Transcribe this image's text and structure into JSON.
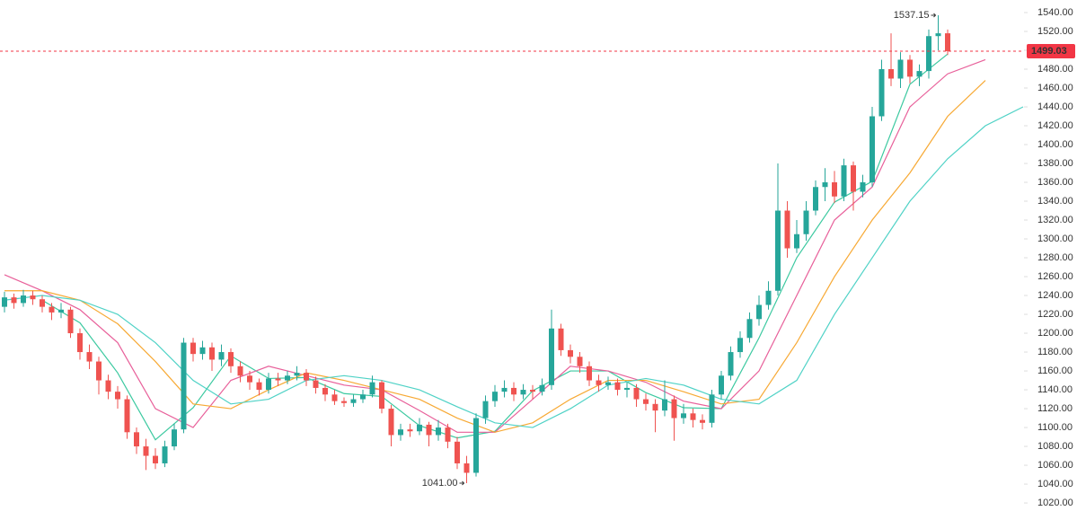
{
  "chart_data": {
    "type": "candlestick",
    "up_color": "#26a69a",
    "down_color": "#ef5350",
    "ylim": [
      1011.5,
      1553.3
    ],
    "yticks": [
      {
        "value": 1540,
        "label": "1540.00"
      },
      {
        "value": 1520,
        "label": "1520.00"
      },
      {
        "value": 1500,
        "label": "1500.00"
      },
      {
        "value": 1480,
        "label": "1480.00"
      },
      {
        "value": 1460,
        "label": "1460.00"
      },
      {
        "value": 1440,
        "label": "1440.00"
      },
      {
        "value": 1420,
        "label": "1420.00"
      },
      {
        "value": 1400,
        "label": "1400.00"
      },
      {
        "value": 1380,
        "label": "1380.00"
      },
      {
        "value": 1360,
        "label": "1360.00"
      },
      {
        "value": 1340,
        "label": "1340.00"
      },
      {
        "value": 1320,
        "label": "1320.00"
      },
      {
        "value": 1300,
        "label": "1300.00"
      },
      {
        "value": 1280,
        "label": "1280.00"
      },
      {
        "value": 1260,
        "label": "1260.00"
      },
      {
        "value": 1240,
        "label": "1240.00"
      },
      {
        "value": 1220,
        "label": "1220.00"
      },
      {
        "value": 1200,
        "label": "1200.00"
      },
      {
        "value": 1180,
        "label": "1180.00"
      },
      {
        "value": 1160,
        "label": "1160.00"
      },
      {
        "value": 1140,
        "label": "1140.00"
      },
      {
        "value": 1120,
        "label": "1120.00"
      },
      {
        "value": 1100,
        "label": "1100.00"
      },
      {
        "value": 1080,
        "label": "1080.00"
      },
      {
        "value": 1060,
        "label": "1060.00"
      },
      {
        "value": 1040,
        "label": "1040.00"
      },
      {
        "value": 1020,
        "label": "1020.00"
      }
    ],
    "open": [
      1228,
      1238,
      1232,
      1240,
      1236,
      1228,
      1222,
      1225,
      1200,
      1180,
      1170,
      1150,
      1138,
      1130,
      1095,
      1080,
      1070,
      1062,
      1080,
      1098,
      1190,
      1178,
      1185,
      1172,
      1180,
      1165,
      1155,
      1148,
      1140,
      1152,
      1150,
      1155,
      1158,
      1150,
      1142,
      1135,
      1128,
      1126,
      1130,
      1135,
      1148,
      1120,
      1092,
      1098,
      1096,
      1103,
      1092,
      1100,
      1085,
      1062,
      1052,
      1110,
      1128,
      1138,
      1142,
      1135,
      1140,
      1138,
      1145,
      1205,
      1182,
      1175,
      1165,
      1150,
      1145,
      1148,
      1140,
      1142,
      1130,
      1125,
      1118,
      1130,
      1110,
      1115,
      1108,
      1105,
      1135,
      1155,
      1180,
      1195,
      1215,
      1230,
      1245,
      1330,
      1290,
      1305,
      1330,
      1355,
      1360,
      1345,
      1378,
      1350,
      1360,
      1430,
      1480,
      1470,
      1490,
      1472,
      1478,
      1515,
      1518
    ],
    "high": [
      1244,
      1242,
      1246,
      1245,
      1240,
      1232,
      1232,
      1228,
      1205,
      1188,
      1175,
      1156,
      1144,
      1134,
      1100,
      1088,
      1078,
      1086,
      1104,
      1195,
      1195,
      1192,
      1190,
      1188,
      1184,
      1170,
      1160,
      1152,
      1158,
      1158,
      1160,
      1165,
      1162,
      1154,
      1146,
      1140,
      1132,
      1135,
      1140,
      1155,
      1150,
      1124,
      1104,
      1104,
      1110,
      1106,
      1108,
      1104,
      1090,
      1070,
      1115,
      1134,
      1145,
      1150,
      1148,
      1146,
      1145,
      1152,
      1225,
      1210,
      1188,
      1180,
      1170,
      1156,
      1154,
      1152,
      1148,
      1146,
      1136,
      1130,
      1150,
      1134,
      1125,
      1120,
      1114,
      1140,
      1160,
      1186,
      1202,
      1222,
      1240,
      1255,
      1380,
      1340,
      1320,
      1340,
      1362,
      1375,
      1372,
      1385,
      1382,
      1368,
      1440,
      1490,
      1518,
      1498,
      1495,
      1485,
      1522,
      1537.15,
      1522
    ],
    "low": [
      1222,
      1226,
      1228,
      1230,
      1222,
      1214,
      1216,
      1195,
      1172,
      1162,
      1135,
      1130,
      1120,
      1088,
      1072,
      1055,
      1056,
      1058,
      1076,
      1094,
      1170,
      1172,
      1160,
      1165,
      1158,
      1148,
      1140,
      1134,
      1136,
      1144,
      1146,
      1150,
      1144,
      1136,
      1128,
      1124,
      1122,
      1122,
      1126,
      1132,
      1115,
      1080,
      1086,
      1090,
      1092,
      1080,
      1086,
      1078,
      1056,
      1041,
      1048,
      1104,
      1122,
      1132,
      1128,
      1130,
      1130,
      1134,
      1140,
      1176,
      1168,
      1158,
      1144,
      1138,
      1140,
      1134,
      1132,
      1122,
      1118,
      1095,
      1112,
      1086,
      1104,
      1100,
      1098,
      1100,
      1130,
      1150,
      1174,
      1190,
      1208,
      1225,
      1240,
      1280,
      1285,
      1298,
      1325,
      1340,
      1338,
      1340,
      1330,
      1344,
      1355,
      1425,
      1462,
      1460,
      1465,
      1462,
      1470,
      1500,
      1495
    ],
    "close": [
      1238,
      1232,
      1240,
      1236,
      1228,
      1222,
      1225,
      1200,
      1180,
      1170,
      1150,
      1138,
      1130,
      1095,
      1080,
      1070,
      1062,
      1080,
      1098,
      1190,
      1178,
      1185,
      1172,
      1180,
      1165,
      1155,
      1148,
      1140,
      1152,
      1150,
      1155,
      1158,
      1150,
      1142,
      1135,
      1128,
      1126,
      1130,
      1135,
      1148,
      1120,
      1092,
      1098,
      1096,
      1103,
      1092,
      1100,
      1085,
      1062,
      1052,
      1110,
      1128,
      1138,
      1142,
      1135,
      1140,
      1138,
      1145,
      1205,
      1182,
      1175,
      1165,
      1150,
      1145,
      1148,
      1140,
      1142,
      1130,
      1125,
      1118,
      1130,
      1110,
      1115,
      1108,
      1105,
      1135,
      1155,
      1180,
      1195,
      1215,
      1230,
      1245,
      1330,
      1290,
      1305,
      1330,
      1355,
      1360,
      1345,
      1378,
      1350,
      1360,
      1430,
      1480,
      1470,
      1490,
      1472,
      1478,
      1515,
      1518,
      1499.03
    ],
    "lines": [
      {
        "color": "#3cc9a0",
        "x": [
          4,
          8,
          12,
          16,
          20,
          24,
          28,
          32,
          36,
          40,
          44,
          48,
          52,
          56,
          60,
          64,
          68,
          72,
          76,
          80,
          84,
          88,
          92,
          96,
          100
        ],
        "values": [
          1235,
          1211,
          1158,
          1087,
          1121,
          1176,
          1152,
          1153,
          1136,
          1133,
          1102,
          1089,
          1096,
          1139,
          1160,
          1160,
          1137,
          1121,
          1120,
          1195,
          1280,
          1339,
          1361,
          1464,
          1496
        ]
      },
      {
        "color": "#e8609a",
        "x": [
          0,
          4,
          8,
          12,
          16,
          20,
          24,
          28,
          32,
          36,
          40,
          44,
          48,
          52,
          56,
          60,
          64,
          68,
          72,
          76,
          80,
          84,
          88,
          92,
          96,
          100,
          104
        ],
        "values": [
          1262,
          1245,
          1225,
          1190,
          1120,
          1100,
          1150,
          1165,
          1155,
          1145,
          1140,
          1118,
          1095,
          1095,
          1130,
          1165,
          1160,
          1148,
          1128,
          1120,
          1160,
          1240,
          1320,
          1355,
          1440,
          1475,
          1490
        ]
      },
      {
        "color": "#f7a934",
        "x": [
          0,
          4,
          8,
          12,
          16,
          20,
          24,
          28,
          32,
          36,
          40,
          44,
          48,
          52,
          56,
          60,
          64,
          68,
          72,
          76,
          80,
          84,
          88,
          92,
          96,
          100,
          104
        ],
        "values": [
          1245,
          1245,
          1235,
          1210,
          1170,
          1125,
          1120,
          1140,
          1158,
          1150,
          1140,
          1130,
          1110,
          1095,
          1105,
          1130,
          1150,
          1150,
          1138,
          1125,
          1130,
          1190,
          1260,
          1320,
          1370,
          1430,
          1468
        ]
      },
      {
        "color": "#4fd2c6",
        "x": [
          0,
          4,
          8,
          12,
          16,
          20,
          24,
          28,
          32,
          36,
          40,
          44,
          48,
          52,
          56,
          60,
          64,
          68,
          72,
          76,
          80,
          84,
          88,
          92,
          96,
          100,
          104,
          108
        ],
        "values": [
          1235,
          1240,
          1235,
          1220,
          1190,
          1150,
          1125,
          1130,
          1150,
          1155,
          1150,
          1140,
          1122,
          1105,
          1100,
          1120,
          1145,
          1152,
          1145,
          1130,
          1125,
          1150,
          1220,
          1280,
          1340,
          1385,
          1420,
          1440
        ]
      }
    ],
    "high_label": {
      "value": 1537.15,
      "label": "1537.15"
    },
    "low_label": {
      "value": 1041,
      "label": "1041.00"
    },
    "last_price": {
      "value": 1499.03,
      "label": "1499.03"
    },
    "last_color": "#f23645"
  }
}
